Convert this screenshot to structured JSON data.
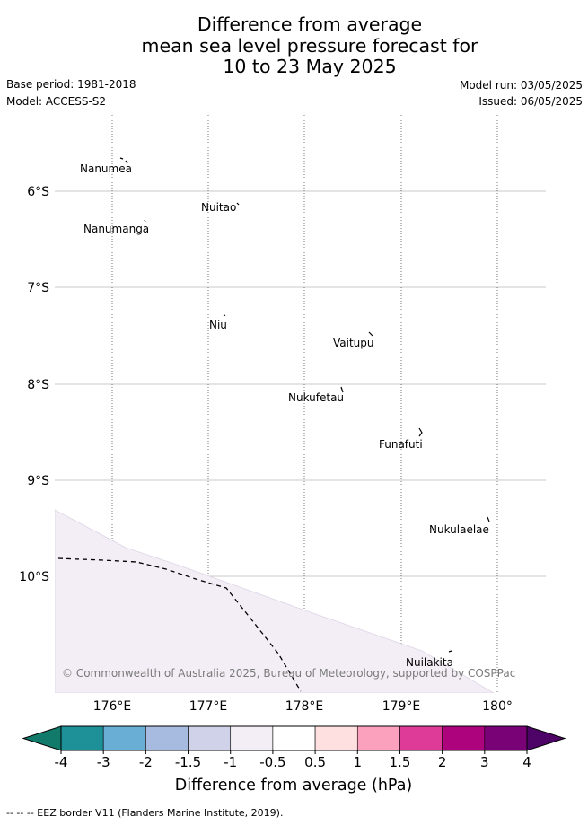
{
  "title_lines": [
    "Difference from average",
    "mean sea level pressure forecast for",
    "10 to 23 May 2025"
  ],
  "info": {
    "base_period": "Base period: 1981-2018",
    "model": "Model: ACCESS-S2",
    "model_run": "Model run: 03/05/2025",
    "issued": "Issued: 06/05/2025"
  },
  "map": {
    "lat_labels": [
      "6°S",
      "7°S",
      "8°S",
      "9°S",
      "10°S"
    ],
    "lon_labels": [
      "176°E",
      "177°E",
      "178°E",
      "179°E",
      "180°"
    ],
    "islands": [
      "Nanumea",
      "Nuitao",
      "Nanumanga",
      "Niu",
      "Vaitupu",
      "Nukufetau",
      "Funafuti",
      "Nukulaelae",
      "Nuilakita"
    ],
    "copyright": "© Commonwealth of Australia 2025, Bureau of Meteorology, supported by COSPPac",
    "shaded_region_category": "-1 to -0.5"
  },
  "colorbar": {
    "tick_labels": [
      "-4",
      "-3",
      "-2",
      "-1.5",
      "-1",
      "-0.5",
      "0.5",
      "1",
      "1.5",
      "2",
      "3",
      "4"
    ],
    "colors": [
      "#1d9098",
      "#69aed5",
      "#a7badf",
      "#cfd2e8",
      "#f3eef6",
      "#ffffff",
      "#ffe0e0",
      "#fba1bd",
      "#de3a98",
      "#ad047e",
      "#7a0277"
    ],
    "under_color": "#117a6a",
    "over_color": "#4e0367",
    "label": "Difference from average (hPa)"
  },
  "footer": "-- -- -- EEZ border V11 (Flanders Marine Institute, 2019)."
}
